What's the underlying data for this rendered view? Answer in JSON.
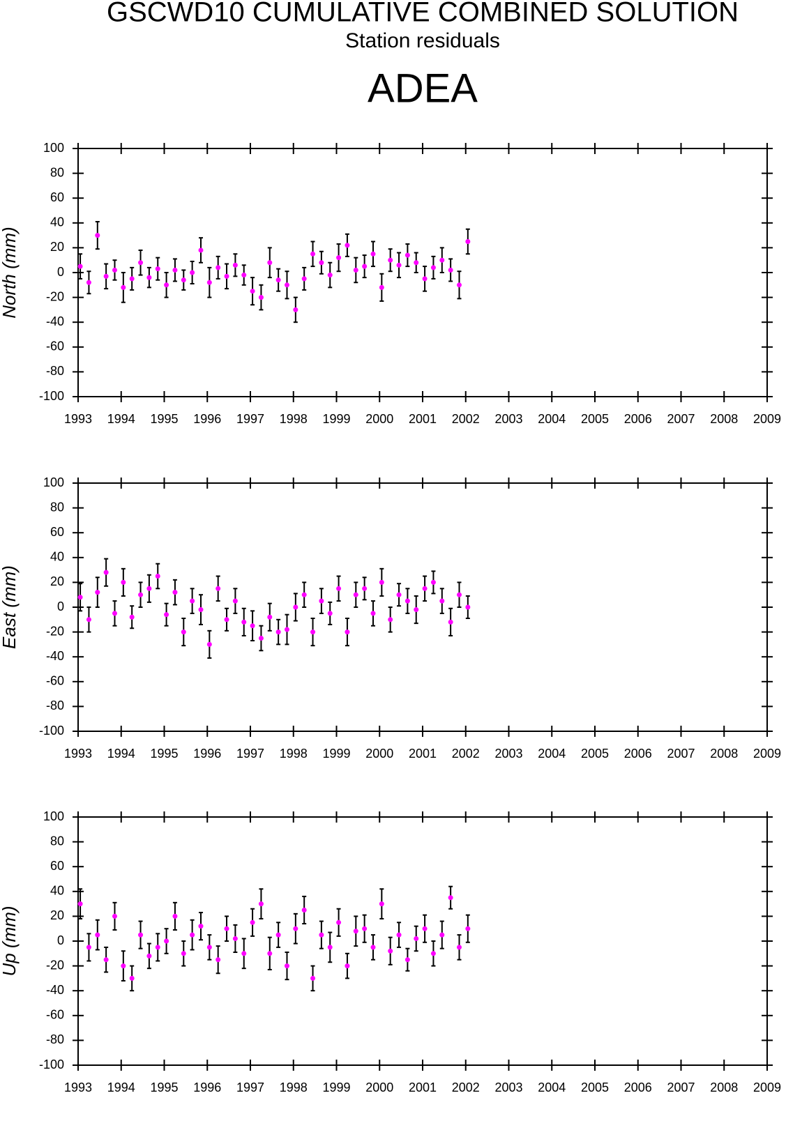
{
  "header": {
    "title": "GSCWD10 CUMULATIVE COMBINED SOLUTION",
    "subtitle": "Station residuals",
    "station": "ADEA"
  },
  "chart_data": [
    {
      "type": "scatter",
      "ylabel": "North (mm)",
      "x": [
        1993.05,
        1993.25,
        1993.45,
        1993.65,
        1993.85,
        1994.05,
        1994.25,
        1994.45,
        1994.65,
        1994.85,
        1995.05,
        1995.25,
        1995.45,
        1995.65,
        1995.85,
        1996.05,
        1996.25,
        1996.45,
        1996.65,
        1996.85,
        1997.05,
        1997.25,
        1997.45,
        1997.65,
        1997.85,
        1998.05,
        1998.25,
        1998.45,
        1998.65,
        1998.85,
        1999.05,
        1999.25,
        1999.45,
        1999.65,
        1999.85,
        2000.05,
        2000.25,
        2000.45,
        2000.65,
        2000.85,
        2001.05,
        2001.25,
        2001.45,
        2001.65,
        2001.85,
        2002.05
      ],
      "series": [
        {
          "color": "#ff00ff",
          "error_color": "#000000",
          "values": [
            5,
            -8,
            30,
            -3,
            2,
            -12,
            -5,
            8,
            -4,
            3,
            -10,
            2,
            -6,
            0,
            18,
            -8,
            4,
            -3,
            6,
            -2,
            -15,
            -20,
            8,
            -6,
            -10,
            -30,
            -5,
            15,
            8,
            -2,
            12,
            22,
            2,
            5,
            15,
            -12,
            10,
            6,
            14,
            8,
            -5,
            4,
            10,
            2,
            -10,
            25
          ],
          "errors": [
            10,
            9,
            11,
            10,
            8,
            12,
            9,
            10,
            8,
            9,
            10,
            9,
            8,
            9,
            10,
            12,
            9,
            10,
            9,
            8,
            11,
            10,
            12,
            9,
            11,
            10,
            9,
            10,
            9,
            10,
            11,
            9,
            10,
            9,
            10,
            11,
            9,
            10,
            9,
            8,
            10,
            9,
            10,
            9,
            11,
            10
          ]
        }
      ],
      "xlim": [
        1993,
        2009
      ],
      "ylim": [
        -100,
        100
      ],
      "xticks": [
        1993,
        1994,
        1995,
        1996,
        1997,
        1998,
        1999,
        2000,
        2001,
        2002,
        2003,
        2004,
        2005,
        2006,
        2007,
        2008,
        2009
      ],
      "yticks": [
        -100,
        -80,
        -60,
        -40,
        -20,
        0,
        20,
        40,
        60,
        80,
        100
      ]
    },
    {
      "type": "scatter",
      "ylabel": "East (mm)",
      "x": [
        1993.05,
        1993.25,
        1993.45,
        1993.65,
        1993.85,
        1994.05,
        1994.25,
        1994.45,
        1994.65,
        1994.85,
        1995.05,
        1995.25,
        1995.45,
        1995.65,
        1995.85,
        1996.05,
        1996.25,
        1996.45,
        1996.65,
        1996.85,
        1997.05,
        1997.25,
        1997.45,
        1997.65,
        1997.85,
        1998.05,
        1998.25,
        1998.45,
        1998.65,
        1998.85,
        1999.05,
        1999.25,
        1999.45,
        1999.65,
        1999.85,
        2000.05,
        2000.25,
        2000.45,
        2000.65,
        2000.85,
        2001.05,
        2001.25,
        2001.45,
        2001.65,
        2001.85,
        2002.05
      ],
      "series": [
        {
          "color": "#ff00ff",
          "error_color": "#000000",
          "values": [
            8,
            -10,
            12,
            28,
            -5,
            20,
            -8,
            10,
            15,
            25,
            -6,
            12,
            -20,
            5,
            -2,
            -30,
            15,
            -10,
            5,
            -12,
            -15,
            -25,
            -8,
            -20,
            -18,
            0,
            10,
            -20,
            5,
            -5,
            15,
            -20,
            10,
            15,
            -5,
            20,
            -10,
            10,
            5,
            -2,
            15,
            20,
            5,
            -12,
            10,
            0
          ],
          "errors": [
            11,
            10,
            12,
            11,
            10,
            11,
            9,
            10,
            11,
            10,
            9,
            10,
            11,
            10,
            12,
            11,
            10,
            9,
            10,
            11,
            12,
            10,
            11,
            10,
            12,
            11,
            10,
            11,
            10,
            9,
            10,
            11,
            10,
            9,
            10,
            11,
            10,
            9,
            10,
            11,
            10,
            9,
            10,
            11,
            10,
            9
          ]
        }
      ],
      "xlim": [
        1993,
        2009
      ],
      "ylim": [
        -100,
        100
      ],
      "xticks": [
        1993,
        1994,
        1995,
        1996,
        1997,
        1998,
        1999,
        2000,
        2001,
        2002,
        2003,
        2004,
        2005,
        2006,
        2007,
        2008,
        2009
      ],
      "yticks": [
        -100,
        -80,
        -60,
        -40,
        -20,
        0,
        20,
        40,
        60,
        80,
        100
      ]
    },
    {
      "type": "scatter",
      "ylabel": "Up (mm)",
      "x": [
        1993.05,
        1993.25,
        1993.45,
        1993.65,
        1993.85,
        1994.05,
        1994.25,
        1994.45,
        1994.65,
        1994.85,
        1995.05,
        1995.25,
        1995.45,
        1995.65,
        1995.85,
        1996.05,
        1996.25,
        1996.45,
        1996.65,
        1996.85,
        1997.05,
        1997.25,
        1997.45,
        1997.65,
        1997.85,
        1998.05,
        1998.25,
        1998.45,
        1998.65,
        1998.85,
        1999.05,
        1999.25,
        1999.45,
        1999.65,
        1999.85,
        2000.05,
        2000.25,
        2000.45,
        2000.65,
        2000.85,
        2001.05,
        2001.25,
        2001.45,
        2001.65,
        2001.85,
        2002.05
      ],
      "series": [
        {
          "color": "#ff00ff",
          "error_color": "#000000",
          "values": [
            30,
            -5,
            5,
            -15,
            20,
            -20,
            -30,
            5,
            -12,
            -5,
            0,
            20,
            -10,
            5,
            12,
            -5,
            -15,
            10,
            2,
            -10,
            15,
            30,
            -10,
            5,
            -20,
            10,
            25,
            -30,
            5,
            -5,
            15,
            -20,
            8,
            10,
            -5,
            30,
            -8,
            5,
            -15,
            2,
            10,
            -10,
            5,
            35,
            -5,
            10
          ],
          "errors": [
            12,
            11,
            12,
            10,
            11,
            12,
            10,
            11,
            10,
            11,
            10,
            11,
            10,
            12,
            11,
            10,
            11,
            10,
            11,
            12,
            11,
            12,
            13,
            10,
            11,
            12,
            11,
            10,
            11,
            12,
            11,
            10,
            12,
            11,
            10,
            12,
            11,
            10,
            9,
            10,
            11,
            10,
            11,
            9,
            10,
            11
          ]
        }
      ],
      "xlim": [
        1993,
        2009
      ],
      "ylim": [
        -100,
        100
      ],
      "xticks": [
        1993,
        1994,
        1995,
        1996,
        1997,
        1998,
        1999,
        2000,
        2001,
        2002,
        2003,
        2004,
        2005,
        2006,
        2007,
        2008,
        2009
      ],
      "yticks": [
        -100,
        -80,
        -60,
        -40,
        -20,
        0,
        20,
        40,
        60,
        80,
        100
      ]
    }
  ]
}
